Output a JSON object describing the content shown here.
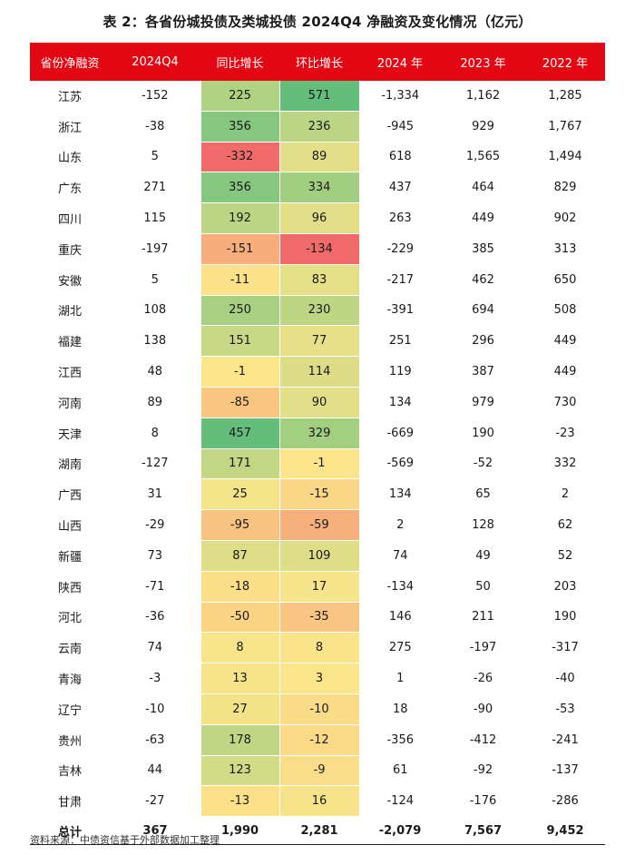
{
  "title": "表 2：各省份城投债及类城投债 2024Q4 净融资及变化情况（亿元）",
  "header": {
    "columns": [
      "省份净融资",
      "2024Q4",
      "同比增长",
      "环比增长",
      "2024 年",
      "2023 年",
      "2022 年"
    ],
    "background": "#e30613"
  },
  "heatmap_scale": {
    "negative": "#f26b6b",
    "neutral": "#fbe58a",
    "positive": "#63be7b"
  },
  "rows": [
    {
      "province": "江苏",
      "q4": "-152",
      "yoy": "225",
      "qoq": "571",
      "y2024": "-1,334",
      "y2023": "1,162",
      "y2022": "1,285"
    },
    {
      "province": "浙江",
      "q4": "-38",
      "yoy": "356",
      "qoq": "236",
      "y2024": "-945",
      "y2023": "929",
      "y2022": "1,767"
    },
    {
      "province": "山东",
      "q4": "5",
      "yoy": "-332",
      "qoq": "89",
      "y2024": "618",
      "y2023": "1,565",
      "y2022": "1,494"
    },
    {
      "province": "广东",
      "q4": "271",
      "yoy": "356",
      "qoq": "334",
      "y2024": "437",
      "y2023": "464",
      "y2022": "829"
    },
    {
      "province": "四川",
      "q4": "115",
      "yoy": "192",
      "qoq": "96",
      "y2024": "263",
      "y2023": "449",
      "y2022": "902"
    },
    {
      "province": "重庆",
      "q4": "-197",
      "yoy": "-151",
      "qoq": "-134",
      "y2024": "-229",
      "y2023": "385",
      "y2022": "313"
    },
    {
      "province": "安徽",
      "q4": "5",
      "yoy": "-11",
      "qoq": "83",
      "y2024": "-217",
      "y2023": "462",
      "y2022": "650"
    },
    {
      "province": "湖北",
      "q4": "108",
      "yoy": "250",
      "qoq": "230",
      "y2024": "-391",
      "y2023": "694",
      "y2022": "508"
    },
    {
      "province": "福建",
      "q4": "138",
      "yoy": "151",
      "qoq": "77",
      "y2024": "251",
      "y2023": "296",
      "y2022": "449"
    },
    {
      "province": "江西",
      "q4": "48",
      "yoy": "-1",
      "qoq": "114",
      "y2024": "119",
      "y2023": "387",
      "y2022": "449"
    },
    {
      "province": "河南",
      "q4": "89",
      "yoy": "-85",
      "qoq": "90",
      "y2024": "134",
      "y2023": "979",
      "y2022": "730"
    },
    {
      "province": "天津",
      "q4": "8",
      "yoy": "457",
      "qoq": "329",
      "y2024": "-669",
      "y2023": "190",
      "y2022": "-23"
    },
    {
      "province": "湖南",
      "q4": "-127",
      "yoy": "171",
      "qoq": "-1",
      "y2024": "-569",
      "y2023": "-52",
      "y2022": "332"
    },
    {
      "province": "广西",
      "q4": "31",
      "yoy": "25",
      "qoq": "-15",
      "y2024": "134",
      "y2023": "65",
      "y2022": "2"
    },
    {
      "province": "山西",
      "q4": "-29",
      "yoy": "-95",
      "qoq": "-59",
      "y2024": "2",
      "y2023": "128",
      "y2022": "62"
    },
    {
      "province": "新疆",
      "q4": "73",
      "yoy": "87",
      "qoq": "109",
      "y2024": "74",
      "y2023": "49",
      "y2022": "52"
    },
    {
      "province": "陕西",
      "q4": "-71",
      "yoy": "-18",
      "qoq": "17",
      "y2024": "-134",
      "y2023": "50",
      "y2022": "203"
    },
    {
      "province": "河北",
      "q4": "-36",
      "yoy": "-50",
      "qoq": "-35",
      "y2024": "146",
      "y2023": "211",
      "y2022": "190"
    },
    {
      "province": "云南",
      "q4": "74",
      "yoy": "8",
      "qoq": "8",
      "y2024": "275",
      "y2023": "-197",
      "y2022": "-317"
    },
    {
      "province": "青海",
      "q4": "-3",
      "yoy": "13",
      "qoq": "3",
      "y2024": "1",
      "y2023": "-26",
      "y2022": "-40"
    },
    {
      "province": "辽宁",
      "q4": "-10",
      "yoy": "27",
      "qoq": "-10",
      "y2024": "18",
      "y2023": "-90",
      "y2022": "-53"
    },
    {
      "province": "贵州",
      "q4": "-63",
      "yoy": "178",
      "qoq": "-12",
      "y2024": "-356",
      "y2023": "-412",
      "y2022": "-241"
    },
    {
      "province": "吉林",
      "q4": "44",
      "yoy": "123",
      "qoq": "-9",
      "y2024": "61",
      "y2023": "-92",
      "y2022": "-137"
    },
    {
      "province": "甘肃",
      "q4": "-27",
      "yoy": "-13",
      "qoq": "16",
      "y2024": "-124",
      "y2023": "-176",
      "y2022": "-286"
    }
  ],
  "total": {
    "province": "总计",
    "q4": "367",
    "yoy": "1,990",
    "qoq": "2,281",
    "y2024": "-2,079",
    "y2023": "7,567",
    "y2022": "9,452"
  },
  "source": "资料来源：中债资信基于外部数据加工整理"
}
